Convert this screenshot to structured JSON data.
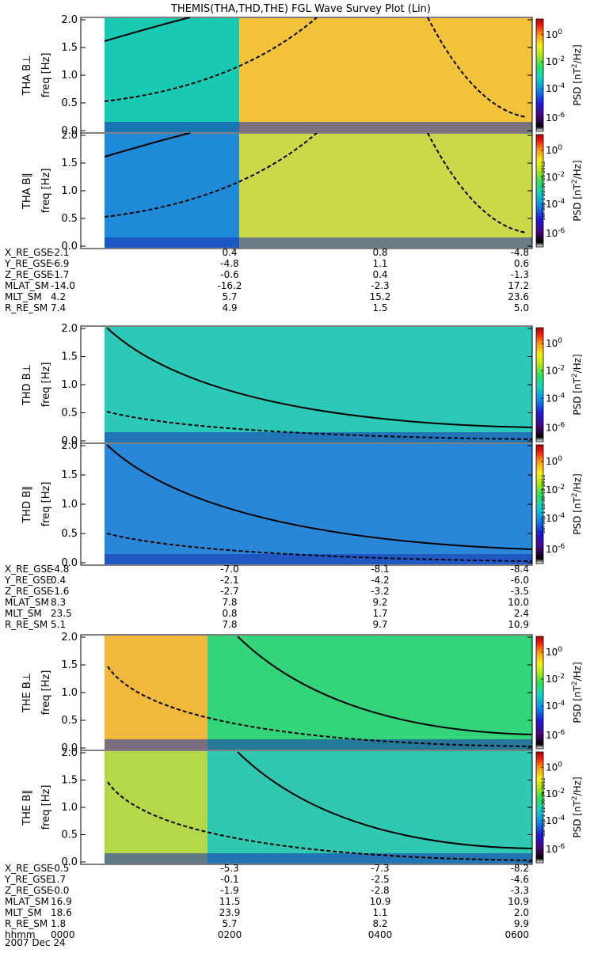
{
  "title": "THEMIS(THA,THD,THE) FGL Wave Survey Plot (Lin)",
  "ylabel_freq": "freq [Hz]",
  "yticks": [
    "0.0",
    "0.5",
    "1.0",
    "1.5",
    "2.0"
  ],
  "colorbar": {
    "label_parts": [
      "PSD [nT",
      "2",
      "/Hz]"
    ],
    "ticks": [
      {
        "base": "10",
        "exp": "0"
      },
      {
        "base": "10",
        "exp": "-2"
      },
      {
        "base": "10",
        "exp": "-4"
      },
      {
        "base": "10",
        "exp": "-6"
      }
    ]
  },
  "stamps": [
    "Sat Sep 1 22:30:13 2012",
    "Sat Sep 1 22:30:13 2012",
    "Sat Sep 1 22:30:14 2012"
  ],
  "chart_data": {
    "type": "heatmap",
    "title": "THEMIS(THA,THD,THE) FGL Wave Survey Plot (Lin)",
    "ylabel": "freq [Hz]",
    "ylim": [
      0,
      2
    ],
    "xlim_hhmm": [
      "0000",
      "0600"
    ],
    "colorbar_label": "PSD [nT^2/Hz]",
    "colorbar_ticks": [
      "10^0",
      "10^-2",
      "10^-4",
      "10^-6"
    ],
    "panels": [
      {
        "probe": "THA",
        "label": "THA B⊥"
      },
      {
        "probe": "THA",
        "label": "THA B∥"
      },
      {
        "probe": "THD",
        "label": "THD B⊥"
      },
      {
        "probe": "THD",
        "label": "THD B∥"
      },
      {
        "probe": "THE",
        "label": "THE B⊥"
      },
      {
        "probe": "THE",
        "label": "THE B∥"
      }
    ]
  },
  "ephemeris": [
    {
      "probe": "THA",
      "rows": [
        {
          "label": "X_RE_GSE",
          "values": [
            "-2.1",
            "0.4",
            "0.8",
            "-4.8"
          ]
        },
        {
          "label": "Y_RE_GSE",
          "values": [
            "-6.9",
            "-4.8",
            "1.1",
            "0.6"
          ]
        },
        {
          "label": "Z_RE_GSE",
          "values": [
            "-1.7",
            "-0.6",
            "0.4",
            "-1.3"
          ]
        },
        {
          "label": "MLAT_SM",
          "values": [
            "-14.0",
            "-16.2",
            "-2.3",
            "17.2"
          ]
        },
        {
          "label": "MLT_SM",
          "values": [
            "4.2",
            "5.7",
            "15.2",
            "23.6"
          ]
        },
        {
          "label": "R_RE_SM",
          "values": [
            "7.4",
            "4.9",
            "1.5",
            "5.0"
          ]
        }
      ]
    },
    {
      "probe": "THD",
      "rows": [
        {
          "label": "X_RE_GSE",
          "values": [
            "-4.8",
            "-7.0",
            "-8.1",
            "-8.4"
          ]
        },
        {
          "label": "Y_RE_GSE",
          "values": [
            "0.4",
            "-2.1",
            "-4.2",
            "-6.0"
          ]
        },
        {
          "label": "Z_RE_GSE",
          "values": [
            "-1.6",
            "-2.7",
            "-3.2",
            "-3.5"
          ]
        },
        {
          "label": "MLAT_SM",
          "values": [
            "8.3",
            "7.8",
            "9.2",
            "10.0"
          ]
        },
        {
          "label": "MLT_SM",
          "values": [
            "23.5",
            "0.8",
            "1.7",
            "2.4"
          ]
        },
        {
          "label": "R_RE_SM",
          "values": [
            "5.1",
            "7.8",
            "9.7",
            "10.9"
          ]
        }
      ]
    },
    {
      "probe": "THE",
      "rows": [
        {
          "label": "X_RE_GSE",
          "values": [
            "-0.5",
            "-5.3",
            "-7.3",
            "-8.2"
          ]
        },
        {
          "label": "Y_RE_GSE",
          "values": [
            "1.7",
            "-0.1",
            "-2.5",
            "-4.6"
          ]
        },
        {
          "label": "Z_RE_GSE",
          "values": [
            "-0.0",
            "-1.9",
            "-2.8",
            "-3.3"
          ]
        },
        {
          "label": "MLAT_SM",
          "values": [
            "16.9",
            "11.5",
            "10.9",
            "10.9"
          ]
        },
        {
          "label": "MLT_SM",
          "values": [
            "18.6",
            "23.9",
            "1.1",
            "2.0"
          ]
        },
        {
          "label": "R_RE_SM",
          "values": [
            "1.8",
            "5.7",
            "8.2",
            "9.9"
          ]
        },
        {
          "label": "hhmm",
          "values": [
            "0000",
            "0200",
            "0400",
            "0600"
          ]
        }
      ]
    }
  ],
  "date": "2007 Dec 24"
}
